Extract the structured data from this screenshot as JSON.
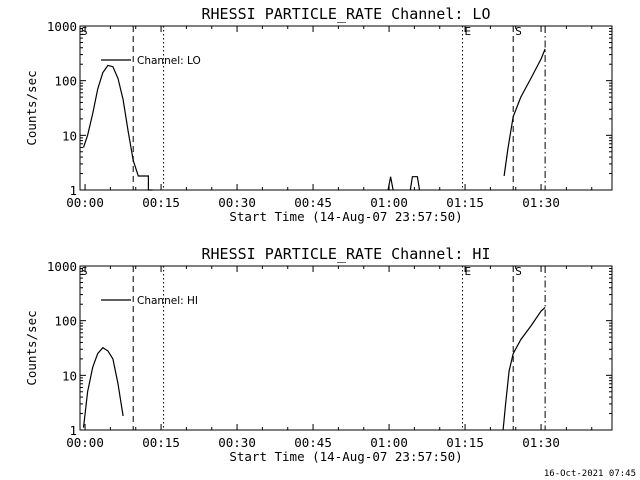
{
  "page": {
    "timestamp": "16-Oct-2021 07:45"
  },
  "colors": {
    "background": "#ffffff",
    "foreground": "#000000"
  },
  "chart_data": [
    {
      "type": "line",
      "title": "RHESSI PARTICLE_RATE Channel: LO",
      "xlabel": "Start Time (14-Aug-07 23:57:50)",
      "ylabel": "Counts/sec",
      "x_units": "minutes since 00:00",
      "xlim": [
        -1,
        104
      ],
      "ylim": [
        1,
        1000
      ],
      "yscale": "log",
      "x_ticks": [
        {
          "value": 0,
          "label": "00:00"
        },
        {
          "value": 15,
          "label": "00:15"
        },
        {
          "value": 30,
          "label": "00:30"
        },
        {
          "value": 45,
          "label": "00:45"
        },
        {
          "value": 60,
          "label": "01:00"
        },
        {
          "value": 75,
          "label": "01:15"
        },
        {
          "value": 90,
          "label": "01:30"
        }
      ],
      "y_ticks": [
        {
          "value": 1,
          "label": "1"
        },
        {
          "value": 10,
          "label": "10"
        },
        {
          "value": 100,
          "label": "100"
        },
        {
          "value": 1000,
          "label": "1000"
        }
      ],
      "legend": {
        "label": "Channel: LO",
        "position": "top-left"
      },
      "vlines": [
        {
          "x": 9.5,
          "style": "dashed",
          "label": ""
        },
        {
          "x": 15.5,
          "style": "dotted",
          "label": ""
        },
        {
          "x": 74.5,
          "style": "dotted",
          "label": "E"
        },
        {
          "x": 84.5,
          "style": "dashed",
          "label": "S"
        },
        {
          "x": 90.8,
          "style": "dashdot",
          "label": ""
        }
      ],
      "segment_labels": [
        {
          "x": 0.5,
          "label": "S"
        }
      ],
      "series": [
        {
          "name": "Channel: LO",
          "segments": [
            {
              "x": [
                -0.3,
                0.5,
                1.5,
                2.5,
                3.5,
                4.5,
                5.5,
                6.5,
                7.5,
                8.5,
                9.5,
                10.5,
                11.5,
                11.5,
                12.5,
                12.5,
                13.3
              ],
              "y": [
                6,
                10,
                25,
                70,
                140,
                190,
                180,
                110,
                45,
                12,
                3.5,
                1.8,
                1.8,
                1.8,
                1.8,
                1.0,
                1.0
              ]
            },
            {
              "x": [
                59.8,
                60.3,
                60.8
              ],
              "y": [
                1.0,
                1.75,
                1.0
              ]
            },
            {
              "x": [
                64.2,
                64.6,
                65.6,
                66.0
              ],
              "y": [
                1.0,
                1.75,
                1.75,
                1.0
              ]
            },
            {
              "x": [
                82.7,
                83.5,
                84.5,
                86.0,
                88.0,
                90.0,
                90.8
              ],
              "y": [
                1.8,
                6,
                22,
                50,
                110,
                250,
                380
              ]
            }
          ]
        }
      ]
    },
    {
      "type": "line",
      "title": "RHESSI PARTICLE_RATE Channel: HI",
      "xlabel": "Start Time (14-Aug-07 23:57:50)",
      "ylabel": "Counts/sec",
      "x_units": "minutes since 00:00",
      "xlim": [
        -1,
        104
      ],
      "ylim": [
        1,
        1000
      ],
      "yscale": "log",
      "x_ticks": [
        {
          "value": 0,
          "label": "00:00"
        },
        {
          "value": 15,
          "label": "00:15"
        },
        {
          "value": 30,
          "label": "00:30"
        },
        {
          "value": 45,
          "label": "00:45"
        },
        {
          "value": 60,
          "label": "01:00"
        },
        {
          "value": 75,
          "label": "01:15"
        },
        {
          "value": 90,
          "label": "01:30"
        }
      ],
      "y_ticks": [
        {
          "value": 1,
          "label": "1"
        },
        {
          "value": 10,
          "label": "10"
        },
        {
          "value": 100,
          "label": "100"
        },
        {
          "value": 1000,
          "label": "1000"
        }
      ],
      "legend": {
        "label": "Channel: HI",
        "position": "top-left"
      },
      "vlines": [
        {
          "x": 9.5,
          "style": "dashed",
          "label": ""
        },
        {
          "x": 15.5,
          "style": "dotted",
          "label": ""
        },
        {
          "x": 74.5,
          "style": "dotted",
          "label": "E"
        },
        {
          "x": 84.5,
          "style": "dashed",
          "label": "S"
        },
        {
          "x": 90.8,
          "style": "dashdot",
          "label": ""
        }
      ],
      "segment_labels": [
        {
          "x": 0.5,
          "label": "S"
        }
      ],
      "series": [
        {
          "name": "Channel: HI",
          "segments": [
            {
              "x": [
                -0.3,
                0.5,
                1.5,
                2.5,
                3.5,
                4.5,
                5.5,
                6.5,
                7.5
              ],
              "y": [
                1.1,
                5,
                14,
                25,
                32,
                28,
                20,
                7,
                1.8
              ]
            },
            {
              "x": [
                82.5,
                83.0,
                83.7,
                84.5,
                86.0,
                88.0,
                90.0,
                90.8
              ],
              "y": [
                1.0,
                3,
                12,
                25,
                45,
                80,
                150,
                175
              ]
            }
          ]
        }
      ]
    }
  ]
}
